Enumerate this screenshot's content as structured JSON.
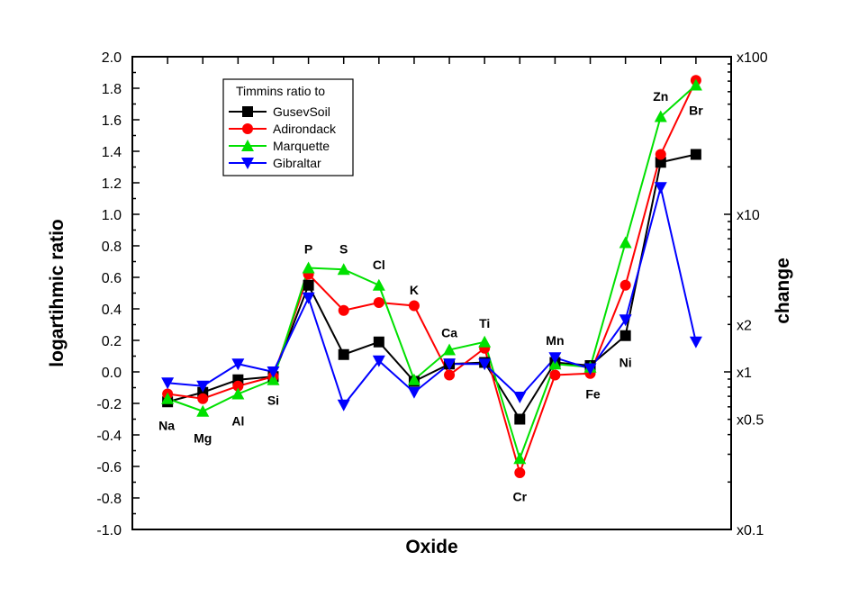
{
  "chart_data": {
    "type": "line",
    "title": "",
    "xlabel": "Oxide",
    "ylabel": "logartihmic ratio",
    "ylabel_right": "change",
    "ylim": [
      -1.0,
      2.0
    ],
    "yticks": [
      "2.0",
      "1.8",
      "1.6",
      "1.4",
      "1.2",
      "1.0",
      "0.8",
      "0.6",
      "0.4",
      "0.2",
      "0.0",
      "-0.2",
      "-0.4",
      "-0.6",
      "-0.8",
      "-1.0"
    ],
    "right_axis_scale": "log10",
    "right_ticks": [
      {
        "label": "x100",
        "value": 2.0
      },
      {
        "label": "x10",
        "value": 1.0
      },
      {
        "label": "x2",
        "value": 0.301
      },
      {
        "label": "x1",
        "value": 0.0
      },
      {
        "label": "x0.5",
        "value": -0.301
      },
      {
        "label": "x0.1",
        "value": -1.0
      }
    ],
    "categories": [
      "Na",
      "Mg",
      "Al",
      "Si",
      "P",
      "S",
      "Cl",
      "K",
      "Ca",
      "Ti",
      "Cr",
      "Mn",
      "Fe",
      "Ni",
      "Zn",
      "Br"
    ],
    "legend": {
      "title": "Timmins ratio to",
      "placement": "top-left"
    },
    "grid": false,
    "series": [
      {
        "name": "GusevSoil",
        "color": "#000000",
        "marker": "square",
        "values": [
          -0.19,
          -0.13,
          -0.05,
          -0.03,
          0.55,
          0.11,
          0.19,
          -0.06,
          0.05,
          0.06,
          -0.3,
          0.06,
          0.04,
          0.23,
          1.33,
          1.38
        ]
      },
      {
        "name": "Adirondack",
        "color": "#ff0000",
        "marker": "circle",
        "values": [
          -0.14,
          -0.17,
          -0.09,
          -0.03,
          0.62,
          0.39,
          0.44,
          0.42,
          -0.02,
          0.15,
          -0.64,
          -0.02,
          -0.01,
          0.55,
          1.38,
          1.85
        ]
      },
      {
        "name": "Marquette",
        "color": "#00e000",
        "marker": "triangle-up",
        "values": [
          -0.17,
          -0.25,
          -0.14,
          -0.05,
          0.66,
          0.65,
          0.55,
          -0.05,
          0.14,
          0.19,
          -0.55,
          0.05,
          0.03,
          0.82,
          1.62,
          1.82
        ]
      },
      {
        "name": "Gibraltar",
        "color": "#0000ff",
        "marker": "triangle-down",
        "values": [
          -0.07,
          -0.09,
          0.05,
          0.0,
          0.47,
          -0.21,
          0.07,
          -0.13,
          0.05,
          0.05,
          -0.16,
          0.09,
          0.02,
          0.33,
          1.17,
          0.19
        ]
      }
    ]
  }
}
